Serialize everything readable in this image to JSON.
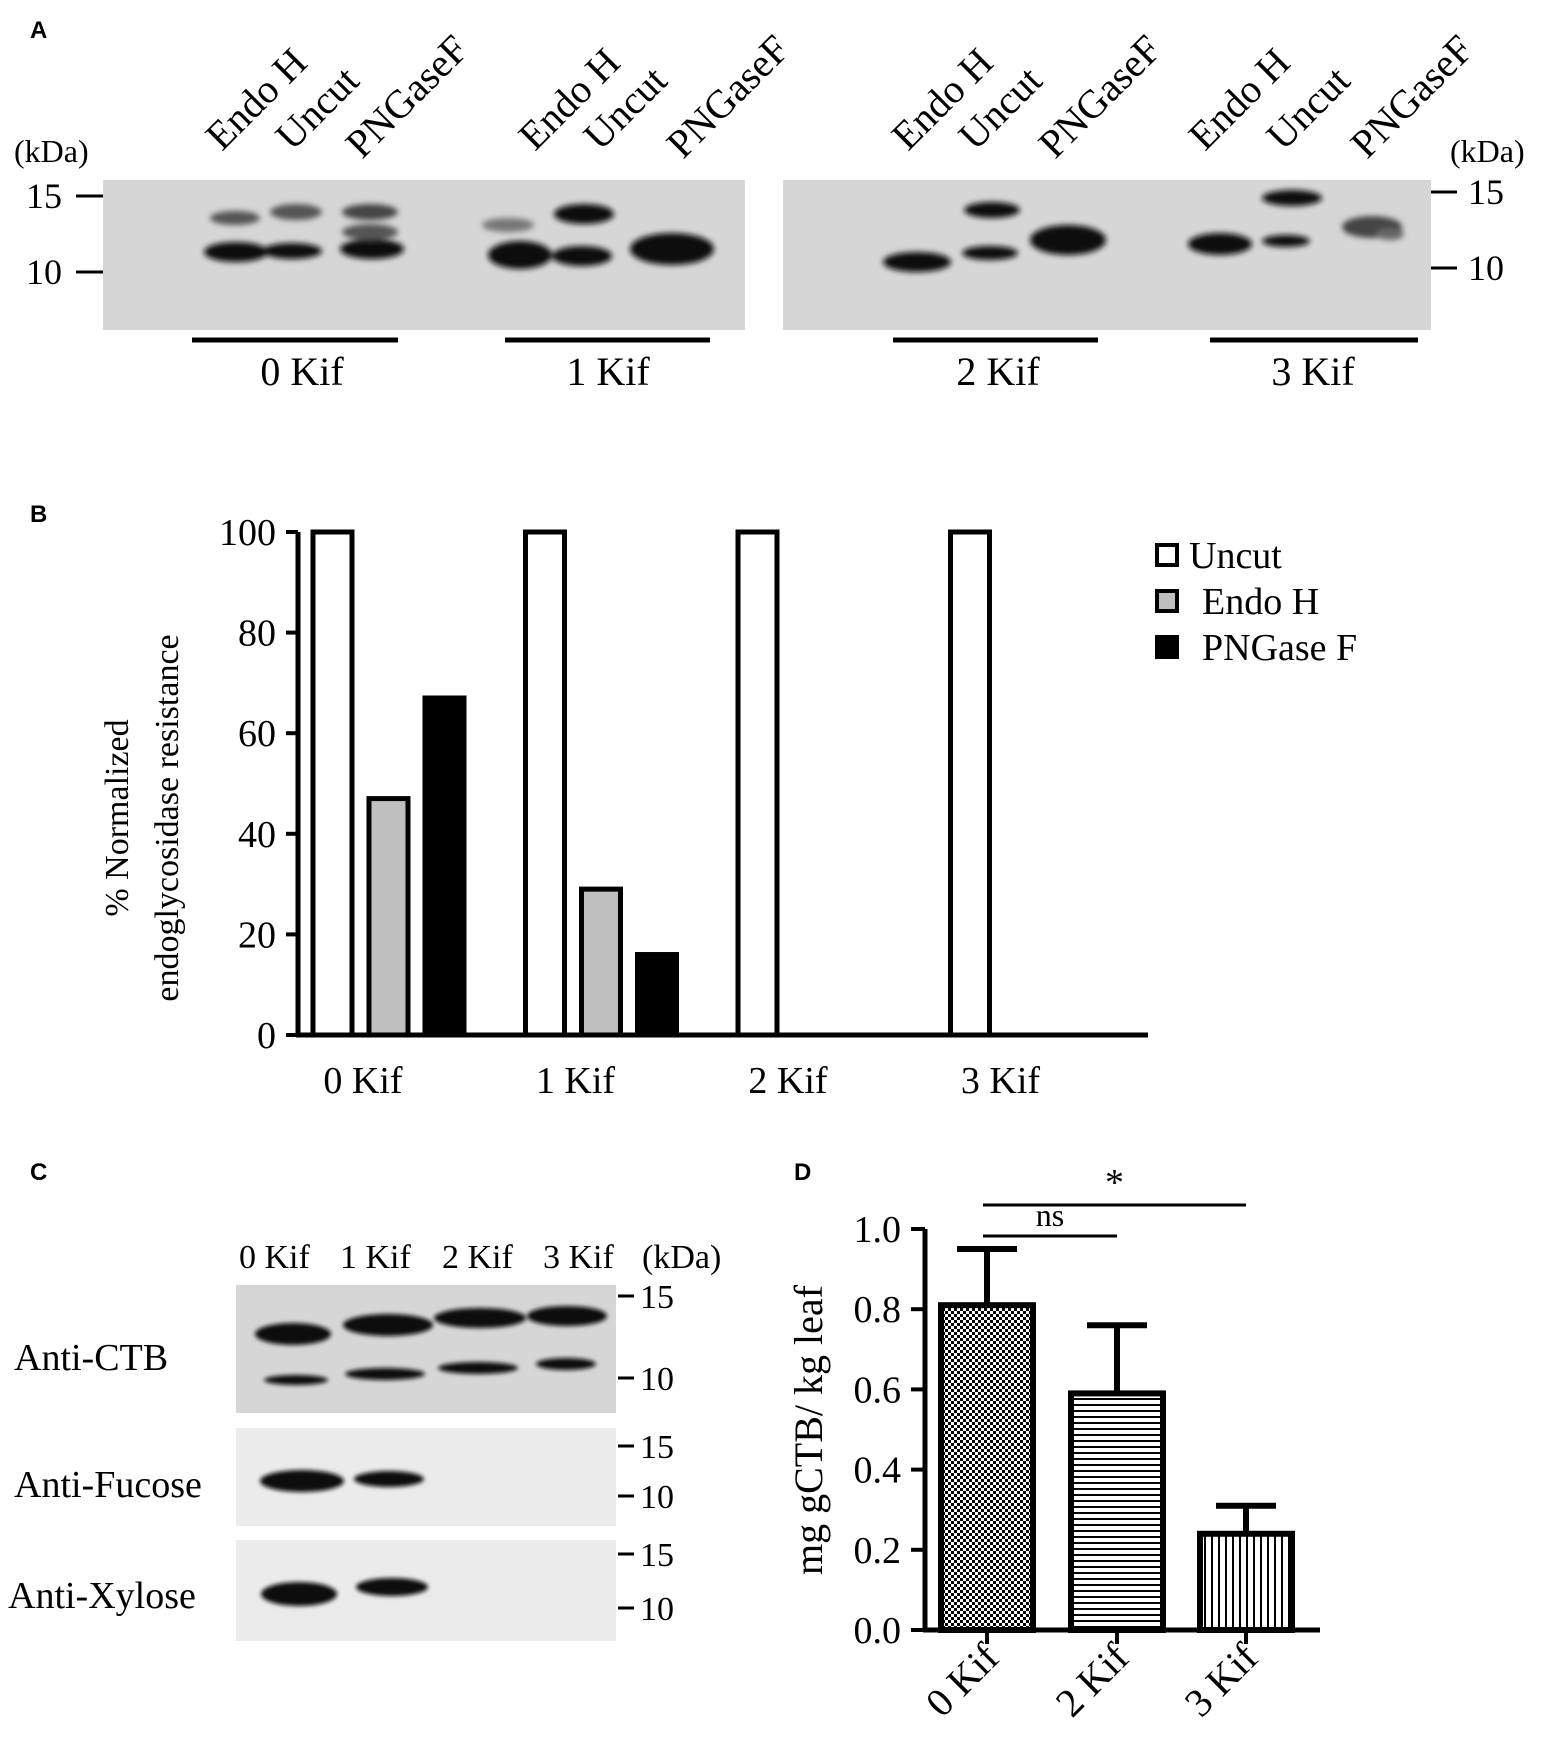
{
  "panel_letters": {
    "a": "A",
    "b": "B",
    "c": "C",
    "d": "D"
  },
  "panel_a": {
    "lane_labels": [
      "Endo H",
      "Uncut",
      "PNGaseF"
    ],
    "unit": "(kDa)",
    "markers": [
      "15",
      "10"
    ],
    "groups": [
      "0 Kif",
      "1 Kif",
      "2 Kif",
      "3 Kif"
    ]
  },
  "panel_c": {
    "lane_labels": [
      "0 Kif",
      "1 Kif",
      "2 Kif",
      "3 Kif"
    ],
    "unit": "(kDa)",
    "blots": [
      {
        "label": "Anti-CTB",
        "markers": [
          "15",
          "10"
        ]
      },
      {
        "label": "Anti-Fucose",
        "markers": [
          "15",
          "10"
        ]
      },
      {
        "label": "Anti-Xylose",
        "markers": [
          "15",
          "10"
        ]
      }
    ]
  },
  "chart_data": [
    {
      "type": "bar",
      "panel": "B",
      "categories": [
        "0 Kif",
        "1 Kif",
        "2 Kif",
        "3 Kif"
      ],
      "series": [
        {
          "name": "Uncut",
          "color": "#ffffff",
          "values": [
            100,
            100,
            100,
            100
          ]
        },
        {
          "name": "Endo H",
          "color": "#bfbfbf",
          "values": [
            47,
            29,
            0,
            0
          ]
        },
        {
          "name": "PNGase F",
          "color": "#000000",
          "values": [
            67,
            16,
            0,
            0
          ]
        }
      ],
      "ylabel_lines": [
        "% Normalized",
        "endoglycosidase  resistance"
      ],
      "yticks": [
        0,
        20,
        40,
        60,
        80,
        100
      ],
      "ylim": [
        0,
        100
      ],
      "legend": "top-right"
    },
    {
      "type": "bar",
      "panel": "D",
      "categories": [
        "0 Kif",
        "2 Kif",
        "3 Kif"
      ],
      "values": [
        0.81,
        0.59,
        0.24
      ],
      "errors": [
        0.14,
        0.17,
        0.07
      ],
      "patterns": [
        "checker",
        "horizontal-stripes",
        "vertical-stripes"
      ],
      "ylabel": "mg gCTB/ kg leaf",
      "yticks": [
        "0.0",
        "0.2",
        "0.4",
        "0.6",
        "0.8",
        "1.0"
      ],
      "ylim": [
        0,
        1.0
      ],
      "significance": [
        {
          "from": "0 Kif",
          "to": "2 Kif",
          "label": "ns"
        },
        {
          "from": "0 Kif",
          "to": "3 Kif",
          "label": "*"
        }
      ]
    }
  ]
}
